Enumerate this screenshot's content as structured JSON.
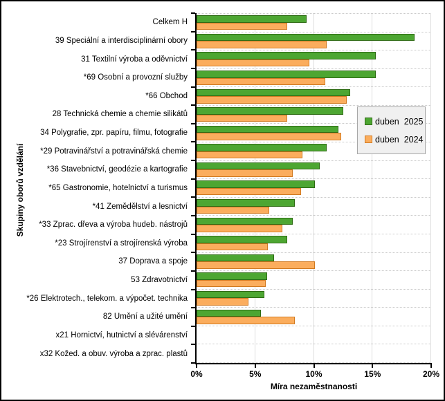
{
  "chart_data": {
    "type": "bar",
    "orientation": "horizontal",
    "title": "",
    "xlabel": "Míra nezaměstnanosti",
    "ylabel": "Skupiny oborů vzdělání",
    "xlim": [
      0,
      20
    ],
    "x_tick_values": [
      0,
      5,
      10,
      15,
      20
    ],
    "x_tick_labels": [
      "0%",
      "5%",
      "10%",
      "15%",
      "20%"
    ],
    "grid": true,
    "legend_position": "inside-right",
    "categories": [
      "Celkem H",
      "39 Speciální a interdisciplinární obory",
      "31 Textilní výroba a oděvnictví",
      "*69 Osobní a provozní služby",
      "*66 Obchod",
      "28 Technická chemie a chemie silikátů",
      "34 Polygrafie, zpr. papíru, filmu, fotografie",
      "*29 Potravinářství a potravinářská chemie",
      "*36 Stavebnictví, geodézie a kartografie",
      "*65 Gastronomie, hotelnictví a turismus",
      "*41 Zemědělství a lesnictví",
      "*33 Zprac. dřeva a výroba hudeb. nástrojů",
      "*23 Strojírenství a strojírenská výroba",
      "37 Doprava a spoje",
      "53 Zdravotnictví",
      "*26 Elektrotech., telekom. a výpočet. technika",
      "82 Umění a užité umění",
      "x21 Hornictví, hutnictví a slévárenství",
      "x32 Kožed. a obuv. výroba a zprac. plastů"
    ],
    "series": [
      {
        "name": "duben  2025",
        "color": "#4da632",
        "border_color": "#2e6b14",
        "values": [
          9.4,
          18.6,
          15.3,
          15.3,
          13.1,
          12.5,
          12.1,
          11.1,
          10.5,
          10.1,
          8.4,
          8.2,
          7.7,
          6.6,
          6.0,
          5.8,
          5.5,
          null,
          null
        ]
      },
      {
        "name": "duben  2024",
        "color": "#fbad5d",
        "border_color": "#d17a21",
        "values": [
          7.7,
          11.1,
          9.6,
          11.0,
          12.8,
          7.7,
          12.3,
          9.0,
          8.2,
          8.9,
          6.2,
          7.3,
          6.1,
          10.1,
          5.9,
          4.4,
          8.4,
          null,
          null
        ]
      }
    ]
  },
  "colors": {
    "gridline": "#dcdcdc",
    "row_separator": "#c9c9c9",
    "axis": "#000000",
    "legend_bg": "#f0f0f0",
    "legend_border": "#a8a8a8"
  }
}
